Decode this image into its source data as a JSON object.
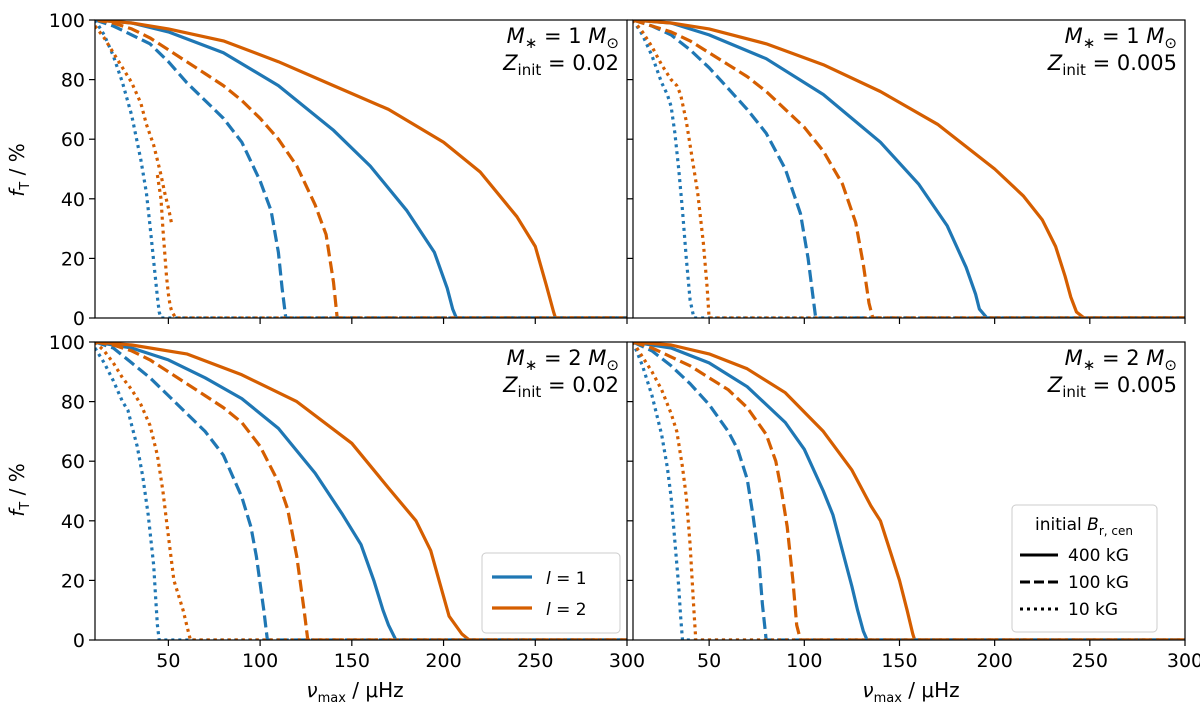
{
  "colors": {
    "l1": "#1f77b4",
    "l2": "#d55e00"
  },
  "linestyles": {
    "solid": "",
    "dashed": "12,5",
    "dotted": "3,4"
  },
  "axes": {
    "xlabel_main": "ν",
    "xlabel_sub": "max",
    "xlabel_unit": " / μHz",
    "ylabel_main": "f",
    "ylabel_sub": "T",
    "ylabel_unit": " / %",
    "xlim": [
      10,
      300
    ],
    "ylim": [
      0,
      100
    ],
    "xticks": [
      50,
      100,
      150,
      200,
      250,
      300
    ],
    "yticks": [
      0,
      20,
      40,
      60,
      80,
      100
    ]
  },
  "legend_l": {
    "entries": [
      {
        "prefix": "l",
        "suffix": " = 1",
        "color_key": "l1"
      },
      {
        "prefix": "l",
        "suffix": " = 2",
        "color_key": "l2"
      }
    ]
  },
  "legend_field": {
    "title_prefix": "initial ",
    "title_B": "B",
    "title_sub": "r, cen",
    "entries": [
      {
        "label": "400 kG",
        "style": "solid"
      },
      {
        "label": "100 kG",
        "style": "dashed"
      },
      {
        "label": "10 kG",
        "style": "dotted"
      }
    ]
  },
  "chart_data": [
    {
      "type": "line",
      "mass_label": "M* = 1 M⊙",
      "mass_text": "1",
      "Z_text": "0.02",
      "series": [
        {
          "l": 1,
          "field": "400 kG",
          "style": "solid",
          "x": [
            10,
            30,
            50,
            80,
            110,
            140,
            160,
            180,
            195,
            202,
            205,
            207,
            300
          ],
          "y": [
            100,
            99,
            96,
            89,
            78,
            63,
            51,
            36,
            22,
            10,
            3,
            0,
            0
          ]
        },
        {
          "l": 2,
          "field": "400 kG",
          "style": "solid",
          "x": [
            10,
            30,
            50,
            80,
            110,
            140,
            170,
            200,
            220,
            240,
            250,
            256,
            260,
            261,
            300
          ],
          "y": [
            100,
            99,
            97,
            93,
            86,
            78,
            70,
            59,
            49,
            34,
            24,
            11,
            2,
            0,
            0
          ]
        },
        {
          "l": 1,
          "field": "100 kG",
          "style": "dashed",
          "x": [
            10,
            20,
            30,
            40,
            50,
            60,
            70,
            80,
            90,
            100,
            106,
            110,
            112,
            114,
            300
          ],
          "y": [
            100,
            98,
            95,
            92,
            86,
            79,
            73,
            67,
            59,
            46,
            36,
            22,
            10,
            0,
            0
          ]
        },
        {
          "l": 2,
          "field": "100 kG",
          "style": "dashed",
          "x": [
            10,
            20,
            30,
            40,
            50,
            60,
            70,
            80,
            90,
            100,
            110,
            120,
            130,
            136,
            140,
            142,
            300
          ],
          "y": [
            100,
            99,
            97,
            94,
            90,
            86,
            82,
            78,
            73,
            67,
            60,
            51,
            38,
            28,
            12,
            0,
            0
          ]
        },
        {
          "l": 1,
          "field": "10 kG",
          "style": "dotted",
          "x": [
            10,
            15,
            20,
            25,
            30,
            35,
            38,
            40,
            42,
            44,
            45,
            46,
            300
          ],
          "y": [
            100,
            95,
            88,
            79,
            68,
            53,
            42,
            31,
            19,
            7,
            2,
            0,
            0
          ]
        },
        {
          "l": 2,
          "field": "10 kG",
          "style": "dotted",
          "x": [
            10,
            15,
            20,
            25,
            30,
            35,
            38,
            42,
            44,
            46,
            48,
            50,
            52
          ],
          "y": [
            98,
            94,
            89,
            84,
            79,
            72,
            65,
            58,
            53,
            48,
            42,
            37,
            31
          ]
        },
        {
          "l": 2,
          "field": "10 kG",
          "style": "dotted",
          "x": [
            44,
            46,
            47,
            48,
            49,
            50,
            51,
            52,
            53,
            54,
            300
          ],
          "y": [
            48,
            40,
            30,
            22,
            14,
            8,
            4,
            2,
            1,
            0,
            0
          ]
        }
      ]
    },
    {
      "type": "line",
      "mass_label": "M* = 1 M⊙",
      "mass_text": "1",
      "Z_text": "0.005",
      "series": [
        {
          "l": 1,
          "field": "400 kG",
          "style": "solid",
          "x": [
            10,
            30,
            50,
            80,
            110,
            140,
            160,
            175,
            185,
            190,
            192,
            196,
            300
          ],
          "y": [
            100,
            99,
            95,
            87,
            75,
            59,
            45,
            31,
            17,
            8,
            3,
            0,
            0
          ]
        },
        {
          "l": 2,
          "field": "400 kG",
          "style": "solid",
          "x": [
            10,
            30,
            50,
            80,
            110,
            140,
            170,
            200,
            215,
            225,
            232,
            237,
            240,
            243,
            247,
            300
          ],
          "y": [
            100,
            99,
            97,
            92,
            85,
            76,
            65,
            50,
            41,
            33,
            24,
            14,
            7,
            2,
            0,
            0
          ]
        },
        {
          "l": 1,
          "field": "100 kG",
          "style": "dashed",
          "x": [
            10,
            20,
            30,
            40,
            50,
            60,
            70,
            80,
            90,
            98,
            102,
            105,
            106,
            300
          ],
          "y": [
            100,
            98,
            95,
            90,
            84,
            77,
            70,
            62,
            50,
            35,
            20,
            5,
            0,
            0
          ]
        },
        {
          "l": 2,
          "field": "100 kG",
          "style": "dashed",
          "x": [
            10,
            20,
            30,
            40,
            50,
            60,
            70,
            80,
            90,
            100,
            110,
            120,
            127,
            131,
            134,
            136,
            300
          ],
          "y": [
            100,
            98,
            96,
            93,
            89,
            85,
            81,
            76,
            70,
            64,
            56,
            45,
            32,
            18,
            5,
            0,
            0
          ]
        },
        {
          "l": 1,
          "field": "10 kG",
          "style": "dotted",
          "x": [
            10,
            15,
            20,
            25,
            28,
            30,
            32,
            34,
            36,
            38,
            40,
            42,
            300
          ],
          "y": [
            100,
            95,
            88,
            79,
            75,
            71,
            62,
            50,
            36,
            20,
            6,
            0,
            0
          ]
        },
        {
          "l": 2,
          "field": "10 kG",
          "style": "dotted",
          "x": [
            10,
            15,
            20,
            25,
            30,
            33,
            35,
            38,
            41,
            44,
            47,
            49,
            50,
            300
          ],
          "y": [
            100,
            96,
            91,
            85,
            80,
            78,
            75,
            66,
            54,
            42,
            25,
            10,
            0,
            0
          ]
        }
      ]
    },
    {
      "type": "line",
      "mass_label": "M* = 2 M⊙",
      "mass_text": "2",
      "Z_text": "0.02",
      "series": [
        {
          "l": 1,
          "field": "400 kG",
          "style": "solid",
          "x": [
            10,
            20,
            30,
            50,
            70,
            90,
            110,
            130,
            145,
            155,
            162,
            167,
            170,
            174,
            300
          ],
          "y": [
            100,
            99,
            98,
            94,
            88,
            81,
            71,
            56,
            42,
            32,
            20,
            10,
            5,
            0,
            0
          ]
        },
        {
          "l": 2,
          "field": "400 kG",
          "style": "solid",
          "x": [
            10,
            30,
            60,
            90,
            120,
            150,
            170,
            185,
            193,
            198,
            203,
            210,
            214,
            300
          ],
          "y": [
            100,
            99,
            96,
            89,
            80,
            66,
            51,
            40,
            30,
            19,
            8,
            2,
            0,
            0
          ]
        },
        {
          "l": 1,
          "field": "100 kG",
          "style": "dashed",
          "x": [
            10,
            20,
            30,
            40,
            50,
            60,
            70,
            80,
            90,
            95,
            98,
            102,
            104,
            300
          ],
          "y": [
            100,
            98,
            93,
            88,
            82,
            76,
            70,
            62,
            48,
            38,
            28,
            10,
            0,
            0
          ]
        },
        {
          "l": 2,
          "field": "100 kG",
          "style": "dashed",
          "x": [
            10,
            20,
            30,
            40,
            50,
            60,
            70,
            80,
            90,
            100,
            110,
            115,
            120,
            124,
            126,
            300
          ],
          "y": [
            100,
            99,
            97,
            94,
            90,
            86,
            82,
            78,
            73,
            65,
            53,
            44,
            28,
            10,
            0,
            0
          ]
        },
        {
          "l": 1,
          "field": "10 kG",
          "style": "dotted",
          "x": [
            10,
            15,
            20,
            25,
            28,
            30,
            33,
            36,
            39,
            42,
            43,
            44,
            45,
            300
          ],
          "y": [
            98,
            93,
            87,
            80,
            77,
            72,
            65,
            55,
            42,
            25,
            15,
            5,
            0,
            0
          ]
        },
        {
          "l": 2,
          "field": "10 kG",
          "style": "dotted",
          "x": [
            10,
            15,
            20,
            25,
            30,
            35,
            40,
            44,
            47,
            49,
            51,
            53,
            55,
            58,
            60,
            62,
            300
          ],
          "y": [
            100,
            97,
            93,
            88,
            84,
            79,
            72,
            62,
            50,
            40,
            30,
            20,
            16,
            10,
            5,
            0,
            0
          ]
        }
      ]
    },
    {
      "type": "line",
      "mass_label": "M* = 2 M⊙",
      "mass_text": "2",
      "Z_text": "0.005",
      "series": [
        {
          "l": 1,
          "field": "400 kG",
          "style": "solid",
          "x": [
            10,
            20,
            30,
            50,
            70,
            90,
            100,
            110,
            115,
            120,
            125,
            128,
            131,
            133,
            300
          ],
          "y": [
            100,
            99,
            98,
            93,
            85,
            73,
            64,
            50,
            42,
            30,
            18,
            10,
            3,
            0,
            0
          ]
        },
        {
          "l": 2,
          "field": "400 kG",
          "style": "solid",
          "x": [
            10,
            30,
            50,
            70,
            90,
            110,
            125,
            135,
            140,
            145,
            150,
            154,
            157,
            158,
            300
          ],
          "y": [
            100,
            99,
            96,
            91,
            83,
            70,
            57,
            45,
            40,
            30,
            20,
            10,
            2,
            0,
            0
          ]
        },
        {
          "l": 1,
          "field": "100 kG",
          "style": "dashed",
          "x": [
            10,
            20,
            30,
            40,
            50,
            60,
            65,
            70,
            73,
            76,
            78,
            80,
            300
          ],
          "y": [
            100,
            97,
            92,
            86,
            79,
            70,
            64,
            54,
            42,
            28,
            12,
            0,
            0
          ]
        },
        {
          "l": 2,
          "field": "100 kG",
          "style": "dashed",
          "x": [
            10,
            20,
            30,
            40,
            50,
            60,
            70,
            80,
            85,
            88,
            91,
            94,
            96,
            98,
            300
          ],
          "y": [
            100,
            98,
            95,
            92,
            88,
            84,
            78,
            69,
            60,
            50,
            38,
            20,
            5,
            0,
            0
          ]
        },
        {
          "l": 1,
          "field": "10 kG",
          "style": "dotted",
          "x": [
            10,
            15,
            20,
            25,
            28,
            30,
            32,
            34,
            35,
            36,
            300
          ],
          "y": [
            100,
            92,
            82,
            69,
            58,
            48,
            33,
            18,
            8,
            0,
            0
          ]
        },
        {
          "l": 2,
          "field": "10 kG",
          "style": "dotted",
          "x": [
            10,
            15,
            20,
            25,
            30,
            33,
            36,
            38,
            40,
            42,
            43,
            300
          ],
          "y": [
            100,
            95,
            90,
            84,
            76,
            70,
            58,
            48,
            32,
            10,
            0,
            0
          ]
        }
      ]
    }
  ]
}
